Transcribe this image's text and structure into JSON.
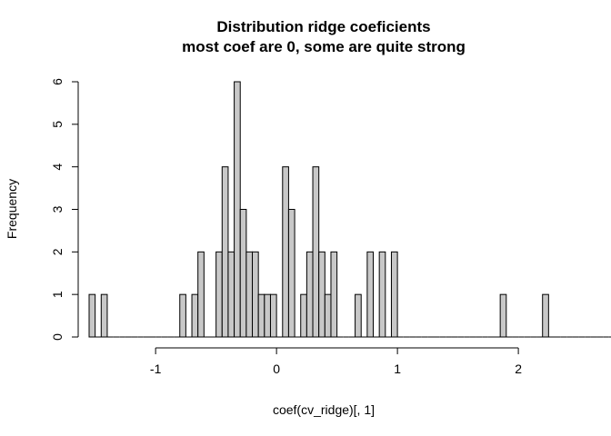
{
  "chart_data": {
    "type": "histogram",
    "title": "Distribution ridge coeficients",
    "subtitle": "most coef are 0, some are quite strong",
    "xlabel": "coef(cv_ridge)[, 1]",
    "ylabel": "Frequency",
    "xlim": [
      -1.55,
      2.3
    ],
    "ylim": [
      0,
      6
    ],
    "x_ticks": [
      -1,
      0,
      1,
      2
    ],
    "y_ticks": [
      0,
      1,
      2,
      3,
      4,
      5,
      6
    ],
    "bin_width": 0.05,
    "bin_start": -1.55,
    "bar_color": "#c8c8c8",
    "grid": false,
    "counts": [
      1,
      0,
      1,
      0,
      0,
      0,
      0,
      0,
      0,
      0,
      0,
      0,
      0,
      0,
      0,
      1,
      0,
      1,
      2,
      0,
      0,
      2,
      4,
      2,
      6,
      3,
      2,
      2,
      1,
      1,
      1,
      0,
      4,
      3,
      0,
      1,
      2,
      4,
      2,
      1,
      2,
      0,
      0,
      0,
      1,
      0,
      2,
      0,
      2,
      0,
      2,
      0,
      0,
      0,
      0,
      0,
      0,
      0,
      0,
      0,
      0,
      0,
      0,
      0,
      0,
      0,
      0,
      0,
      1,
      0,
      0,
      0,
      0,
      0,
      0,
      1,
      0,
      0,
      0,
      0,
      0,
      0,
      0,
      0,
      0,
      0,
      0,
      1
    ]
  }
}
